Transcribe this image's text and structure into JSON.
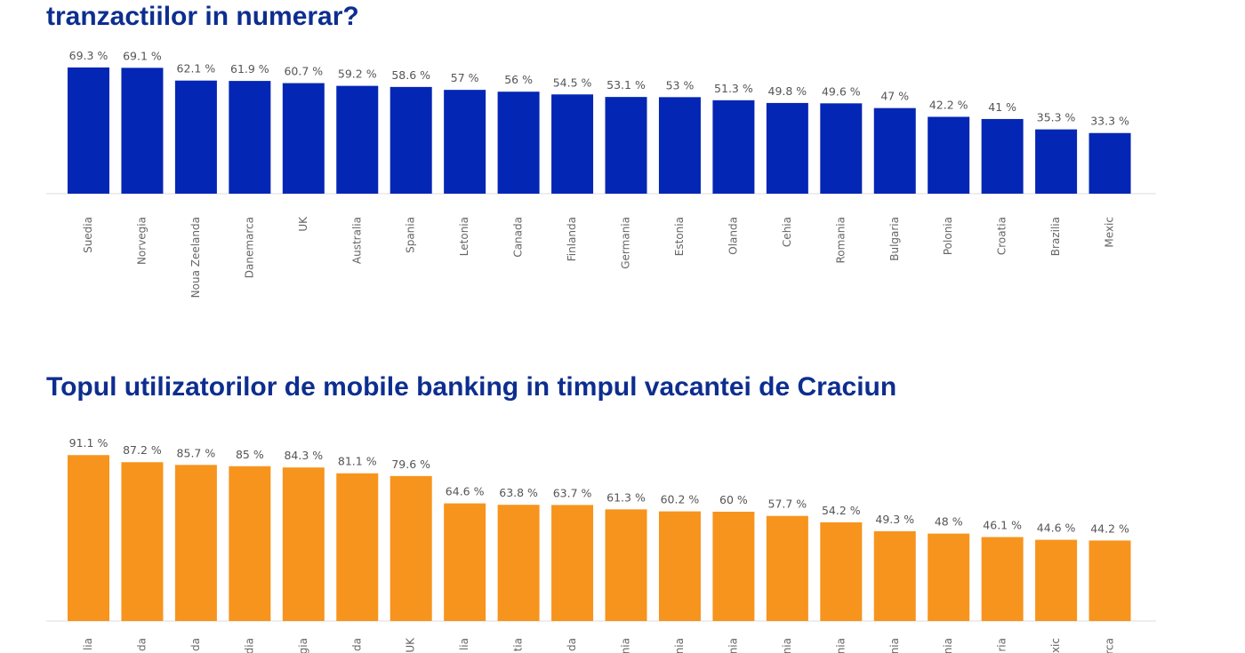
{
  "chart_data": [
    {
      "type": "bar",
      "title": "tranzactiilor in numerar?",
      "color": "#0426b4",
      "categories": [
        "Suedia",
        "Norvegia",
        "Noua Zeelanda",
        "Danemarca",
        "UK",
        "Australia",
        "Spania",
        "Letonia",
        "Canada",
        "Finlanda",
        "Germania",
        "Estonia",
        "Olanda",
        "Cehia",
        "Romania",
        "Bulgaria",
        "Polonia",
        "Croatia",
        "Brazilia",
        "Mexic"
      ],
      "values": [
        69.3,
        69.1,
        62.1,
        61.9,
        60.7,
        59.2,
        58.6,
        57,
        56,
        54.5,
        53.1,
        53,
        51.3,
        49.8,
        49.6,
        47,
        42.2,
        41,
        35.3,
        33.3
      ],
      "value_labels": [
        "69.3 %",
        "69.1 %",
        "62.1 %",
        "61.9 %",
        "60.7 %",
        "59.2 %",
        "58.6 %",
        "57 %",
        "56 %",
        "54.5 %",
        "53.1 %",
        "53 %",
        "51.3 %",
        "49.8 %",
        "49.6 %",
        "47 %",
        "42.2 %",
        "41 %",
        "35.3 %",
        "33.3 %"
      ]
    },
    {
      "type": "bar",
      "title": "Topul utilizatorilor de mobile banking in timpul vacantei de Craciun",
      "color": "#f7941d",
      "categories": [
        "lia",
        "da",
        "da",
        "dia",
        "gia",
        "da",
        "UK",
        "lia",
        "tia",
        "da",
        "nia",
        "nia",
        "nia",
        "nia",
        "nia",
        "nia",
        "nia",
        "ria",
        "xic",
        "rca"
      ],
      "values": [
        91.1,
        87.2,
        85.7,
        85,
        84.3,
        81.1,
        79.6,
        64.6,
        63.8,
        63.7,
        61.3,
        60.2,
        60,
        57.7,
        54.2,
        49.3,
        48,
        46.1,
        44.6,
        44.2
      ],
      "value_labels": [
        "91.1 %",
        "87.2 %",
        "85.7 %",
        "85 %",
        "84.3 %",
        "81.1 %",
        "79.6 %",
        "64.6 %",
        "63.8 %",
        "63.7 %",
        "61.3 %",
        "60.2 %",
        "60 %",
        "57.7 %",
        "54.2 %",
        "49.3 %",
        "48 %",
        "46.1 %",
        "44.6 %",
        "44.2 %"
      ]
    }
  ]
}
